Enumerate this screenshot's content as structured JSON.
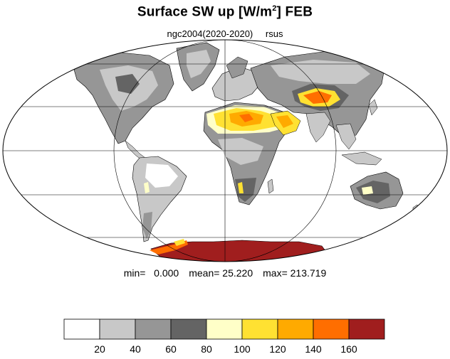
{
  "title": {
    "text": "Surface SW up [W/m",
    "superscript": "2",
    "suffix": "]  FEB"
  },
  "subtitle": {
    "left": "ngc2004(2020-2020)",
    "right": "rsus"
  },
  "stats": {
    "min_label": "min=",
    "min_value": "0.000",
    "mean_label": "mean=",
    "mean_value": "25.220",
    "max_label": "max=",
    "max_value": "213.719"
  },
  "map": {
    "projection": "Mollweide",
    "graticule": {
      "parallels_every_deg": 30,
      "meridians_every_deg": 90
    },
    "ocean_color": "#ffffff",
    "coastline_color": "#000000",
    "regions": [
      {
        "name": "Sahara",
        "level": "80-160"
      },
      {
        "name": "Arabian Peninsula",
        "level": "80-140"
      },
      {
        "name": "Tibetan Plateau",
        "level": "100-160"
      },
      {
        "name": "Antarctica",
        "level": ">160"
      },
      {
        "name": "Greenland",
        "level": "20-60"
      },
      {
        "name": "North America",
        "level": "20-60"
      },
      {
        "name": "Siberia",
        "level": "20-60"
      },
      {
        "name": "Australia",
        "level": "40-100"
      },
      {
        "name": "Southern Africa",
        "level": "40-80"
      },
      {
        "name": "South America",
        "level": "0-40"
      }
    ]
  },
  "colorbar": {
    "colors": [
      "#ffffff",
      "#c8c8c8",
      "#969696",
      "#646464",
      "#ffffc8",
      "#ffe132",
      "#ffaa00",
      "#ff6e00",
      "#a01e1e"
    ],
    "tick_labels": [
      "20",
      "40",
      "60",
      "80",
      "100",
      "120",
      "140",
      "160"
    ]
  }
}
